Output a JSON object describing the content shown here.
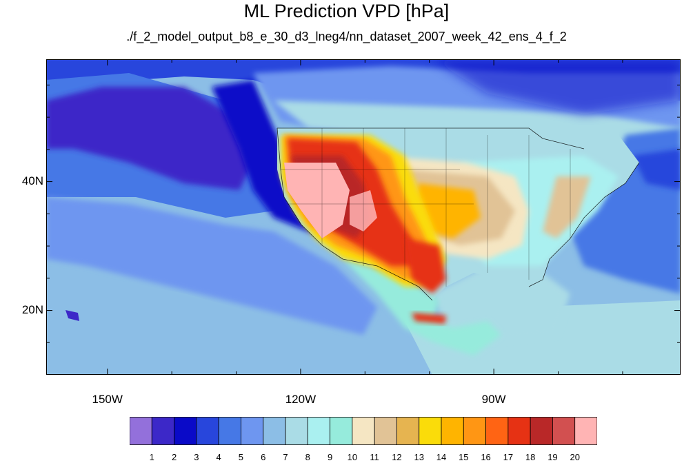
{
  "title": "ML Prediction VPD [hPa]",
  "subtitle": "./f_2_model_output_b8_e_30_d3_lneg4/nn_dataset_2007_week_42_ens_4_f_2",
  "axes": {
    "lat_labels": [
      {
        "label": "40N",
        "lat": 40
      },
      {
        "label": "20N",
        "lat": 20
      }
    ],
    "lon_labels": [
      {
        "label": "150W",
        "lon": -150
      },
      {
        "label": "120W",
        "lon": -120
      },
      {
        "label": "90W",
        "lon": -90
      }
    ],
    "lon_range": [
      -159.5,
      -61
    ],
    "lat_range": [
      10,
      59
    ]
  },
  "colorbar": {
    "labels": [
      "1",
      "2",
      "3",
      "4",
      "5",
      "6",
      "7",
      "8",
      "9",
      "10",
      "11",
      "12",
      "13",
      "14",
      "15",
      "16",
      "17",
      "18",
      "19",
      "20"
    ],
    "colors": [
      "#9370db",
      "#3c28c8",
      "#0a0ac8",
      "#2846dc",
      "#4678e6",
      "#6e96f0",
      "#8cbee6",
      "#aadce6",
      "#aaf0f0",
      "#96ebdc",
      "#f5e6c3",
      "#e1c396",
      "#e6b450",
      "#fadc0a",
      "#ffb400",
      "#ff9614",
      "#ff6414",
      "#e63214",
      "#b92828",
      "#d25050",
      "#ffb4b4"
    ]
  },
  "map": {
    "ocean_colors": [
      "#3c28c8",
      "#0a0ac8",
      "#2846dc",
      "#4678e6",
      "#6e96f0",
      "#8cbee6",
      "#aadce6"
    ],
    "land_colors": [
      "#aaf0f0",
      "#f5e6c3",
      "#e1c396",
      "#fadc0a",
      "#ffb400",
      "#ff9614",
      "#ff6414",
      "#e63214",
      "#b92828",
      "#ffb4b4"
    ]
  }
}
